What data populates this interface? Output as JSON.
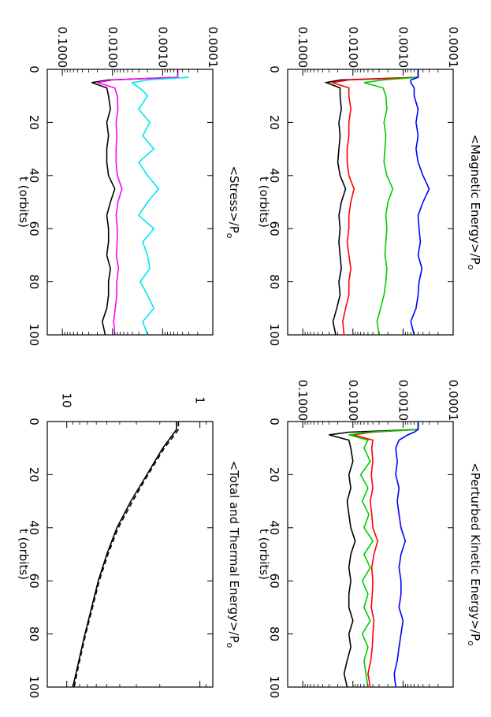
{
  "chart_data": [
    {
      "type": "line",
      "id": "magnetic",
      "title": "<Magnetic Energy>/P",
      "title_subscript": "o",
      "xlabel": "t (orbits)",
      "ylabel": "",
      "xlim": [
        0,
        100
      ],
      "ylim": [
        0.0001,
        0.2
      ],
      "y_scale": "log",
      "x_ticks": [
        "0",
        "20",
        "40",
        "60",
        "80",
        "100"
      ],
      "y_ticks": [
        "0.0001",
        "0.0010",
        "0.0100",
        "0.1000"
      ],
      "series": [
        {
          "color": "#000000",
          "x": [
            0,
            3,
            4,
            5,
            7,
            10,
            15,
            20,
            25,
            30,
            35,
            40,
            45,
            50,
            55,
            60,
            65,
            70,
            75,
            80,
            85,
            90,
            95,
            100
          ],
          "y": [
            0.0005,
            0.0005,
            0.018,
            0.034,
            0.018,
            0.018,
            0.017,
            0.019,
            0.018,
            0.019,
            0.02,
            0.018,
            0.014,
            0.017,
            0.019,
            0.018,
            0.019,
            0.018,
            0.017,
            0.019,
            0.018,
            0.021,
            0.025,
            0.022
          ]
        },
        {
          "color": "#ff0000",
          "x": [
            0,
            3,
            4,
            5,
            7,
            10,
            15,
            20,
            25,
            30,
            35,
            40,
            45,
            50,
            55,
            60,
            65,
            70,
            75,
            80,
            85,
            90,
            95,
            100
          ],
          "y": [
            0.0005,
            0.0005,
            0.012,
            0.026,
            0.012,
            0.012,
            0.011,
            0.012,
            0.012,
            0.013,
            0.013,
            0.012,
            0.0095,
            0.011,
            0.012,
            0.012,
            0.013,
            0.012,
            0.011,
            0.012,
            0.012,
            0.014,
            0.016,
            0.015
          ]
        },
        {
          "color": "#00cc00",
          "x": [
            0,
            3,
            4,
            5,
            7,
            10,
            15,
            20,
            25,
            30,
            35,
            40,
            45,
            50,
            55,
            60,
            65,
            70,
            75,
            80,
            85,
            90,
            95,
            100
          ],
          "y": [
            0.0005,
            0.0005,
            0.0025,
            0.006,
            0.0025,
            0.0022,
            0.0021,
            0.0024,
            0.0022,
            0.0023,
            0.0024,
            0.0021,
            0.0016,
            0.002,
            0.0022,
            0.0021,
            0.0022,
            0.0023,
            0.0021,
            0.0022,
            0.0024,
            0.0028,
            0.0033,
            0.003
          ]
        },
        {
          "color": "#0000ff",
          "x": [
            0,
            3,
            4,
            5,
            7,
            10,
            15,
            20,
            25,
            30,
            35,
            40,
            45,
            50,
            55,
            60,
            65,
            70,
            75,
            80,
            85,
            90,
            95,
            100
          ],
          "y": [
            0.0005,
            0.0005,
            0.0007,
            0.0007,
            0.0006,
            0.0006,
            0.0005,
            0.00055,
            0.0005,
            0.00055,
            0.0005,
            0.0004,
            0.0003,
            0.0004,
            0.0005,
            0.00048,
            0.00045,
            0.0005,
            0.00042,
            0.00048,
            0.0005,
            0.00055,
            0.0007,
            0.0006
          ]
        }
      ]
    },
    {
      "type": "line",
      "id": "kinetic",
      "title": "<Perturbed Kinetic Energy>/P",
      "title_subscript": "o",
      "xlabel": "t (orbits)",
      "ylabel": "",
      "xlim": [
        0,
        100
      ],
      "ylim": [
        0.0001,
        0.2
      ],
      "y_scale": "log",
      "x_ticks": [
        "0",
        "20",
        "40",
        "60",
        "80",
        "100"
      ],
      "y_ticks": [
        "0.0001",
        "0.0010",
        "0.0100",
        "0.1000"
      ],
      "series": [
        {
          "color": "#000000",
          "x": [
            0,
            3,
            4,
            5,
            7,
            10,
            15,
            20,
            25,
            30,
            35,
            40,
            45,
            50,
            55,
            60,
            65,
            70,
            75,
            80,
            85,
            90,
            95,
            100
          ],
          "y": [
            0.0005,
            0.0005,
            0.012,
            0.03,
            0.012,
            0.011,
            0.01,
            0.012,
            0.011,
            0.013,
            0.012,
            0.011,
            0.009,
            0.011,
            0.012,
            0.011,
            0.012,
            0.012,
            0.01,
            0.012,
            0.011,
            0.013,
            0.015,
            0.013
          ]
        },
        {
          "color": "#ff0000",
          "x": [
            0,
            3,
            4,
            5,
            7,
            10,
            15,
            20,
            25,
            30,
            35,
            40,
            45,
            50,
            55,
            60,
            65,
            70,
            75,
            80,
            85,
            90,
            95,
            100
          ],
          "y": [
            0.0005,
            0.0005,
            0.004,
            0.01,
            0.004,
            0.0042,
            0.004,
            0.0043,
            0.004,
            0.0045,
            0.0042,
            0.004,
            0.0032,
            0.0038,
            0.0042,
            0.004,
            0.0041,
            0.0043,
            0.0038,
            0.004,
            0.0041,
            0.0044,
            0.005,
            0.0045
          ]
        },
        {
          "color": "#00cc00",
          "x": [
            0,
            3,
            4,
            5,
            7,
            10,
            15,
            20,
            25,
            30,
            35,
            40,
            45,
            50,
            55,
            60,
            65,
            70,
            75,
            80,
            85,
            90,
            95,
            100
          ],
          "y": [
            0.0005,
            0.0005,
            0.005,
            0.012,
            0.005,
            0.006,
            0.0045,
            0.007,
            0.005,
            0.0065,
            0.0048,
            0.006,
            0.004,
            0.006,
            0.0045,
            0.0065,
            0.005,
            0.006,
            0.0045,
            0.0065,
            0.005,
            0.006,
            0.0055,
            0.005
          ]
        },
        {
          "color": "#0000ff",
          "x": [
            0,
            3,
            4,
            5,
            7,
            10,
            15,
            20,
            25,
            30,
            35,
            40,
            45,
            50,
            55,
            60,
            65,
            70,
            75,
            80,
            85,
            90,
            95,
            100
          ],
          "y": [
            0.0005,
            0.0005,
            0.0006,
            0.0008,
            0.0012,
            0.0014,
            0.0013,
            0.0014,
            0.0012,
            0.0013,
            0.0012,
            0.0011,
            0.0009,
            0.0011,
            0.0012,
            0.0011,
            0.0011,
            0.0012,
            0.001,
            0.0011,
            0.0012,
            0.0013,
            0.0015,
            0.0014
          ]
        }
      ]
    },
    {
      "type": "line",
      "id": "stress",
      "title": "<Stress>/P",
      "title_subscript": "o",
      "xlabel": "t (orbits)",
      "ylabel": "",
      "xlim": [
        0,
        100
      ],
      "ylim": [
        0.0001,
        0.2
      ],
      "y_scale": "log",
      "x_ticks": [
        "0",
        "20",
        "40",
        "60",
        "80",
        "100"
      ],
      "y_ticks": [
        "0.0001",
        "0.0010",
        "0.0100",
        "0.1000"
      ],
      "series": [
        {
          "color": "#000000",
          "x": [
            0,
            3,
            4,
            5,
            7,
            10,
            15,
            20,
            25,
            30,
            35,
            40,
            45,
            50,
            55,
            60,
            65,
            70,
            75,
            80,
            85,
            90,
            95,
            100
          ],
          "y": [
            0.0005,
            0.0005,
            0.012,
            0.026,
            0.013,
            0.012,
            0.011,
            0.013,
            0.012,
            0.013,
            0.013,
            0.012,
            0.009,
            0.011,
            0.013,
            0.012,
            0.012,
            0.013,
            0.011,
            0.012,
            0.012,
            0.013,
            0.016,
            0.014
          ]
        },
        {
          "color": "#ff00ff",
          "x": [
            0,
            3,
            4,
            5,
            7,
            10,
            15,
            20,
            25,
            30,
            35,
            40,
            45,
            50,
            55,
            60,
            65,
            70,
            75,
            80,
            85,
            90,
            95,
            100
          ],
          "y": [
            0.0005,
            0.0005,
            0.01,
            0.02,
            0.009,
            0.008,
            0.0078,
            0.0085,
            0.0082,
            0.0085,
            0.0085,
            0.008,
            0.0065,
            0.0078,
            0.0085,
            0.008,
            0.0081,
            0.0084,
            0.0076,
            0.0082,
            0.0082,
            0.0088,
            0.0095,
            0.009
          ]
        },
        {
          "color": "#00e5ee",
          "x": [
            3,
            4,
            5,
            8,
            10,
            15,
            20,
            25,
            30,
            35,
            40,
            45,
            50,
            55,
            60,
            65,
            70,
            75,
            80,
            85,
            90,
            95,
            100
          ],
          "y": [
            0.0003,
            0.002,
            0.004,
            0.0025,
            0.002,
            0.003,
            0.0018,
            0.0025,
            0.0015,
            0.003,
            0.002,
            0.0012,
            0.002,
            0.003,
            0.0015,
            0.0025,
            0.002,
            0.0018,
            0.0028,
            0.002,
            0.0015,
            0.0025,
            0.002
          ]
        }
      ]
    },
    {
      "type": "line",
      "id": "total_thermal",
      "title": "<Total and Thermal Energy>/P",
      "title_subscript": "o",
      "xlabel": "t (orbits)",
      "ylabel": "",
      "xlim": [
        0,
        100
      ],
      "ylim": [
        0.8,
        14
      ],
      "y_scale": "log",
      "x_ticks": [
        "0",
        "20",
        "40",
        "60",
        "80",
        "100"
      ],
      "y_ticks": [
        "1",
        "10"
      ],
      "series": [
        {
          "color": "#000000",
          "style": "solid",
          "x": [
            0,
            3,
            5,
            10,
            20,
            30,
            40,
            50,
            60,
            70,
            80,
            90,
            100
          ],
          "y": [
            1.5,
            1.5,
            1.6,
            1.9,
            2.5,
            3.3,
            4.2,
            5.0,
            5.8,
            6.5,
            7.3,
            8.1,
            9.0
          ]
        },
        {
          "color": "#000000",
          "style": "dashed",
          "x": [
            0,
            3,
            5,
            10,
            20,
            30,
            40,
            50,
            60,
            70,
            80,
            90,
            100
          ],
          "y": [
            1.45,
            1.45,
            1.55,
            1.85,
            2.45,
            3.2,
            4.1,
            4.9,
            5.7,
            6.4,
            7.2,
            8.0,
            8.8
          ]
        }
      ]
    }
  ]
}
